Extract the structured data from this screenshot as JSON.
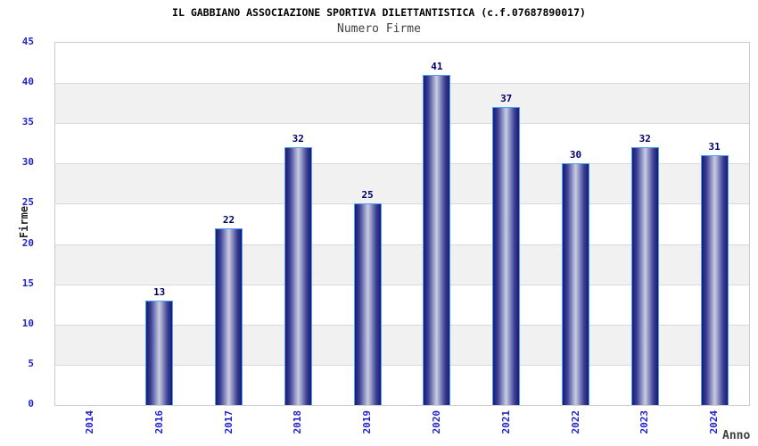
{
  "chart_data": {
    "type": "bar",
    "title": "IL GABBIANO ASSOCIAZIONE SPORTIVA DILETTANTISTICA (c.f.07687890017)",
    "subtitle": "Numero Firme",
    "xlabel": "Anno",
    "ylabel": "Firme",
    "categories": [
      "2014",
      "2016",
      "2017",
      "2018",
      "2019",
      "2020",
      "2021",
      "2022",
      "2023",
      "2024"
    ],
    "values": [
      null,
      13,
      22,
      32,
      25,
      41,
      37,
      30,
      32,
      31
    ],
    "ylim": [
      0,
      45
    ],
    "ytick_step": 5,
    "grid": "horizontal-bands",
    "legend": "none",
    "colors": {
      "title": "#000000",
      "subtitle": "#404040",
      "axis_tick": "#2222cc",
      "value_label": "#000066",
      "bar_dark": "#191970",
      "bar_mid": "#3c4296",
      "bar_light": "#c9cde2",
      "bar_border": "#4d9fff",
      "band_gray": "#f1f1f1",
      "band_white": "#ffffff",
      "gridline": "#d9d9d9",
      "plot_border": "#cccccc"
    }
  }
}
